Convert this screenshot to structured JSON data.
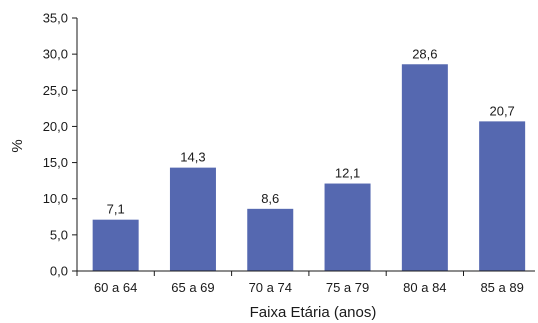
{
  "chart_data": {
    "type": "bar",
    "title": "",
    "xlabel": "Faixa Etária (anos)",
    "ylabel": "%",
    "ylim": [
      0,
      35
    ],
    "yticks": [
      "0,0",
      "5,0",
      "10,0",
      "15,0",
      "20,0",
      "25,0",
      "30,0",
      "35,0"
    ],
    "categories": [
      "60 a 64",
      "65 a 69",
      "70 a 74",
      "75 a 79",
      "80 a 84",
      "85 a 89"
    ],
    "values": [
      7.1,
      14.3,
      8.6,
      12.1,
      28.6,
      20.7
    ],
    "value_labels": [
      "7,1",
      "14,3",
      "8,6",
      "12,1",
      "28,6",
      "20,7"
    ],
    "bar_color": "#5568b0",
    "grid": false,
    "legend": "none"
  }
}
